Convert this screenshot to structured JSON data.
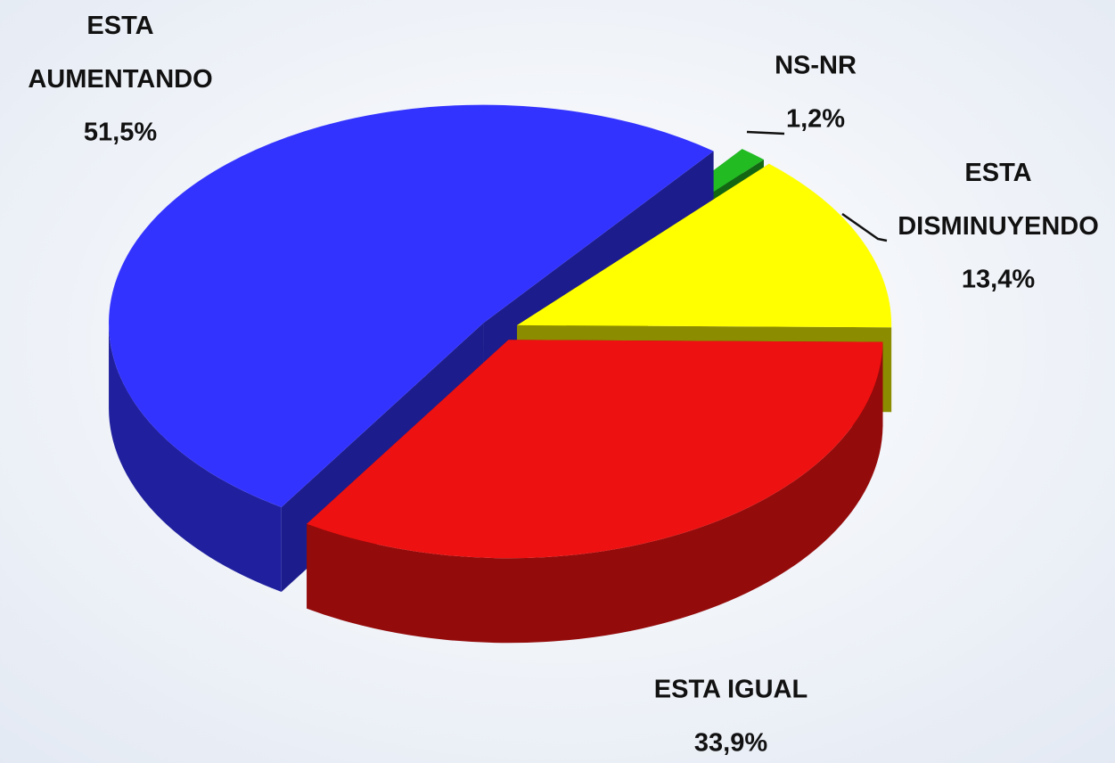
{
  "chart_data": {
    "type": "pie",
    "categories": [
      "NS-NR",
      "ESTA DISMINUYENDO",
      "ESTA IGUAL",
      "ESTA AUMENTANDO"
    ],
    "values": [
      1.2,
      13.4,
      33.9,
      51.5
    ],
    "value_labels": [
      "1,2%",
      "13,4%",
      "33,9%",
      "51,5%"
    ],
    "colors": [
      "#22bb22",
      "#ffff00",
      "#ee1111",
      "#3333ff"
    ]
  }
}
